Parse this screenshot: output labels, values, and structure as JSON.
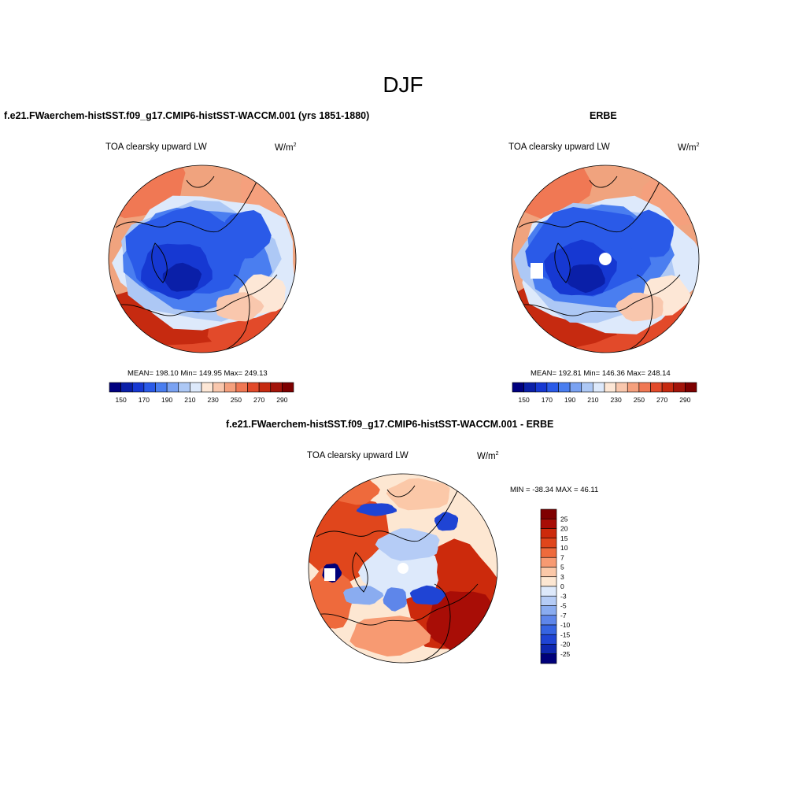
{
  "figure": {
    "title": "DJF",
    "colors": {
      "ocean_warm": "#f0a37e",
      "cold_core": "#1f46e0",
      "coast": "#000000"
    }
  },
  "panels": [
    {
      "id": "model",
      "title": "f.e21.FWaerchem-histSST.f09_g17.CMIP6-histSST-WACCM.001 (yrs 1851-1880)",
      "subtitle": "TOA clearsky upward LW",
      "units_base": "W/m",
      "units_exp": "2",
      "stats": "MEAN= 198.10  Min= 149.95  Max= 249.13"
    },
    {
      "id": "obs",
      "title": "ERBE",
      "subtitle": "TOA clearsky upward LW",
      "units_base": "W/m",
      "units_exp": "2",
      "stats": "MEAN= 192.81  Min= 146.36  Max= 248.14"
    },
    {
      "id": "diff",
      "title": "f.e21.FWaerchem-histSST.f09_g17.CMIP6-histSST-WACCM.001 - ERBE",
      "subtitle": "TOA clearsky upward LW",
      "units_base": "W/m",
      "units_exp": "2",
      "stats": "MIN = -38.34 MAX =  46.11"
    }
  ],
  "colorbars": {
    "absolute": {
      "colors": [
        "#00007f",
        "#0a1fa8",
        "#1638d2",
        "#2a5ae8",
        "#4a7ef0",
        "#7aa2f2",
        "#adc8f5",
        "#dde9fb",
        "#fde7d6",
        "#f9c7ad",
        "#f5a07d",
        "#f07854",
        "#e24a2a",
        "#c62a10",
        "#a3140a",
        "#7d0000"
      ],
      "labels": [
        "150",
        "170",
        "190",
        "210",
        "230",
        "250",
        "270",
        "290"
      ]
    },
    "difference": {
      "colors": [
        "#7f0000",
        "#a80d06",
        "#cc2a0c",
        "#e0461c",
        "#ee6a3c",
        "#f79a72",
        "#fbc8a8",
        "#fde7d2",
        "#dde9fb",
        "#b5ccf6",
        "#8aacf0",
        "#5e86ea",
        "#3664e2",
        "#1f44d4",
        "#0e27b0",
        "#00007a"
      ],
      "labels": [
        "25",
        "20",
        "15",
        "10",
        "7",
        "5",
        "3",
        "0",
        "-3",
        "-5",
        "-7",
        "-10",
        "-15",
        "-20",
        "-25"
      ]
    }
  }
}
